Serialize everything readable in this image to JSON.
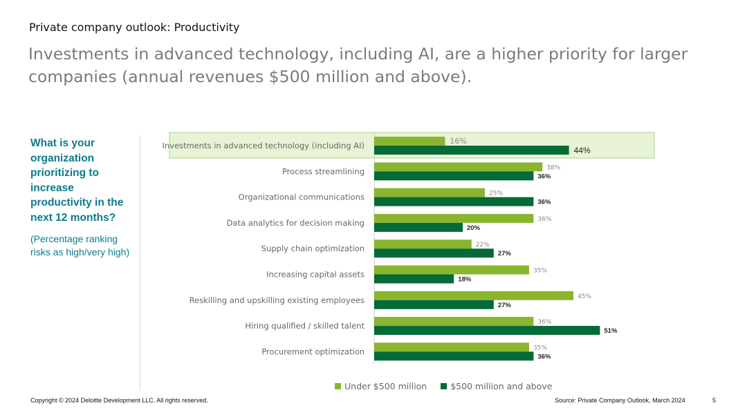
{
  "slide": {
    "eyebrow": "Private company outlook: Productivity",
    "headline": "Investments in advanced technology, including AI, are a higher priority for larger companies (annual revenues $500 million and above).",
    "question": "What is your organization prioritizing to increase productivity in the next 12 months?",
    "question_note": "(Percentage ranking risks as high/very high)",
    "copyright": "Copyright © 2024 Deloitte Development LLC. All rights reserved.",
    "source": "Source: Private Company Outlook, March 2024",
    "page_number": "5"
  },
  "colors": {
    "series_light": "#8ab52e",
    "series_dark": "#046a38",
    "highlight_fill": "#e8f3d6",
    "highlight_border": "#a9d18e"
  },
  "chart_data": {
    "type": "bar",
    "orientation": "horizontal",
    "categories": [
      "Investments in advanced technology (including AI)",
      "Process streamlining",
      "Organizational communications",
      "Data analytics for decision making",
      "Supply chain optimization",
      "Increasing capital assets",
      "Reskilling and upskilling existing employees",
      "Hiring qualified / skilled talent",
      "Procurement optimization"
    ],
    "series": [
      {
        "name": "Under $500 million",
        "values": [
          16,
          38,
          25,
          36,
          22,
          35,
          45,
          36,
          35
        ]
      },
      {
        "name": "$500 million and above",
        "values": [
          44,
          36,
          36,
          20,
          27,
          18,
          27,
          51,
          36
        ]
      }
    ],
    "value_suffix": "%",
    "highlighted_category": 0,
    "legend_position": "bottom",
    "grid": false,
    "xlim": [
      0,
      60
    ]
  }
}
